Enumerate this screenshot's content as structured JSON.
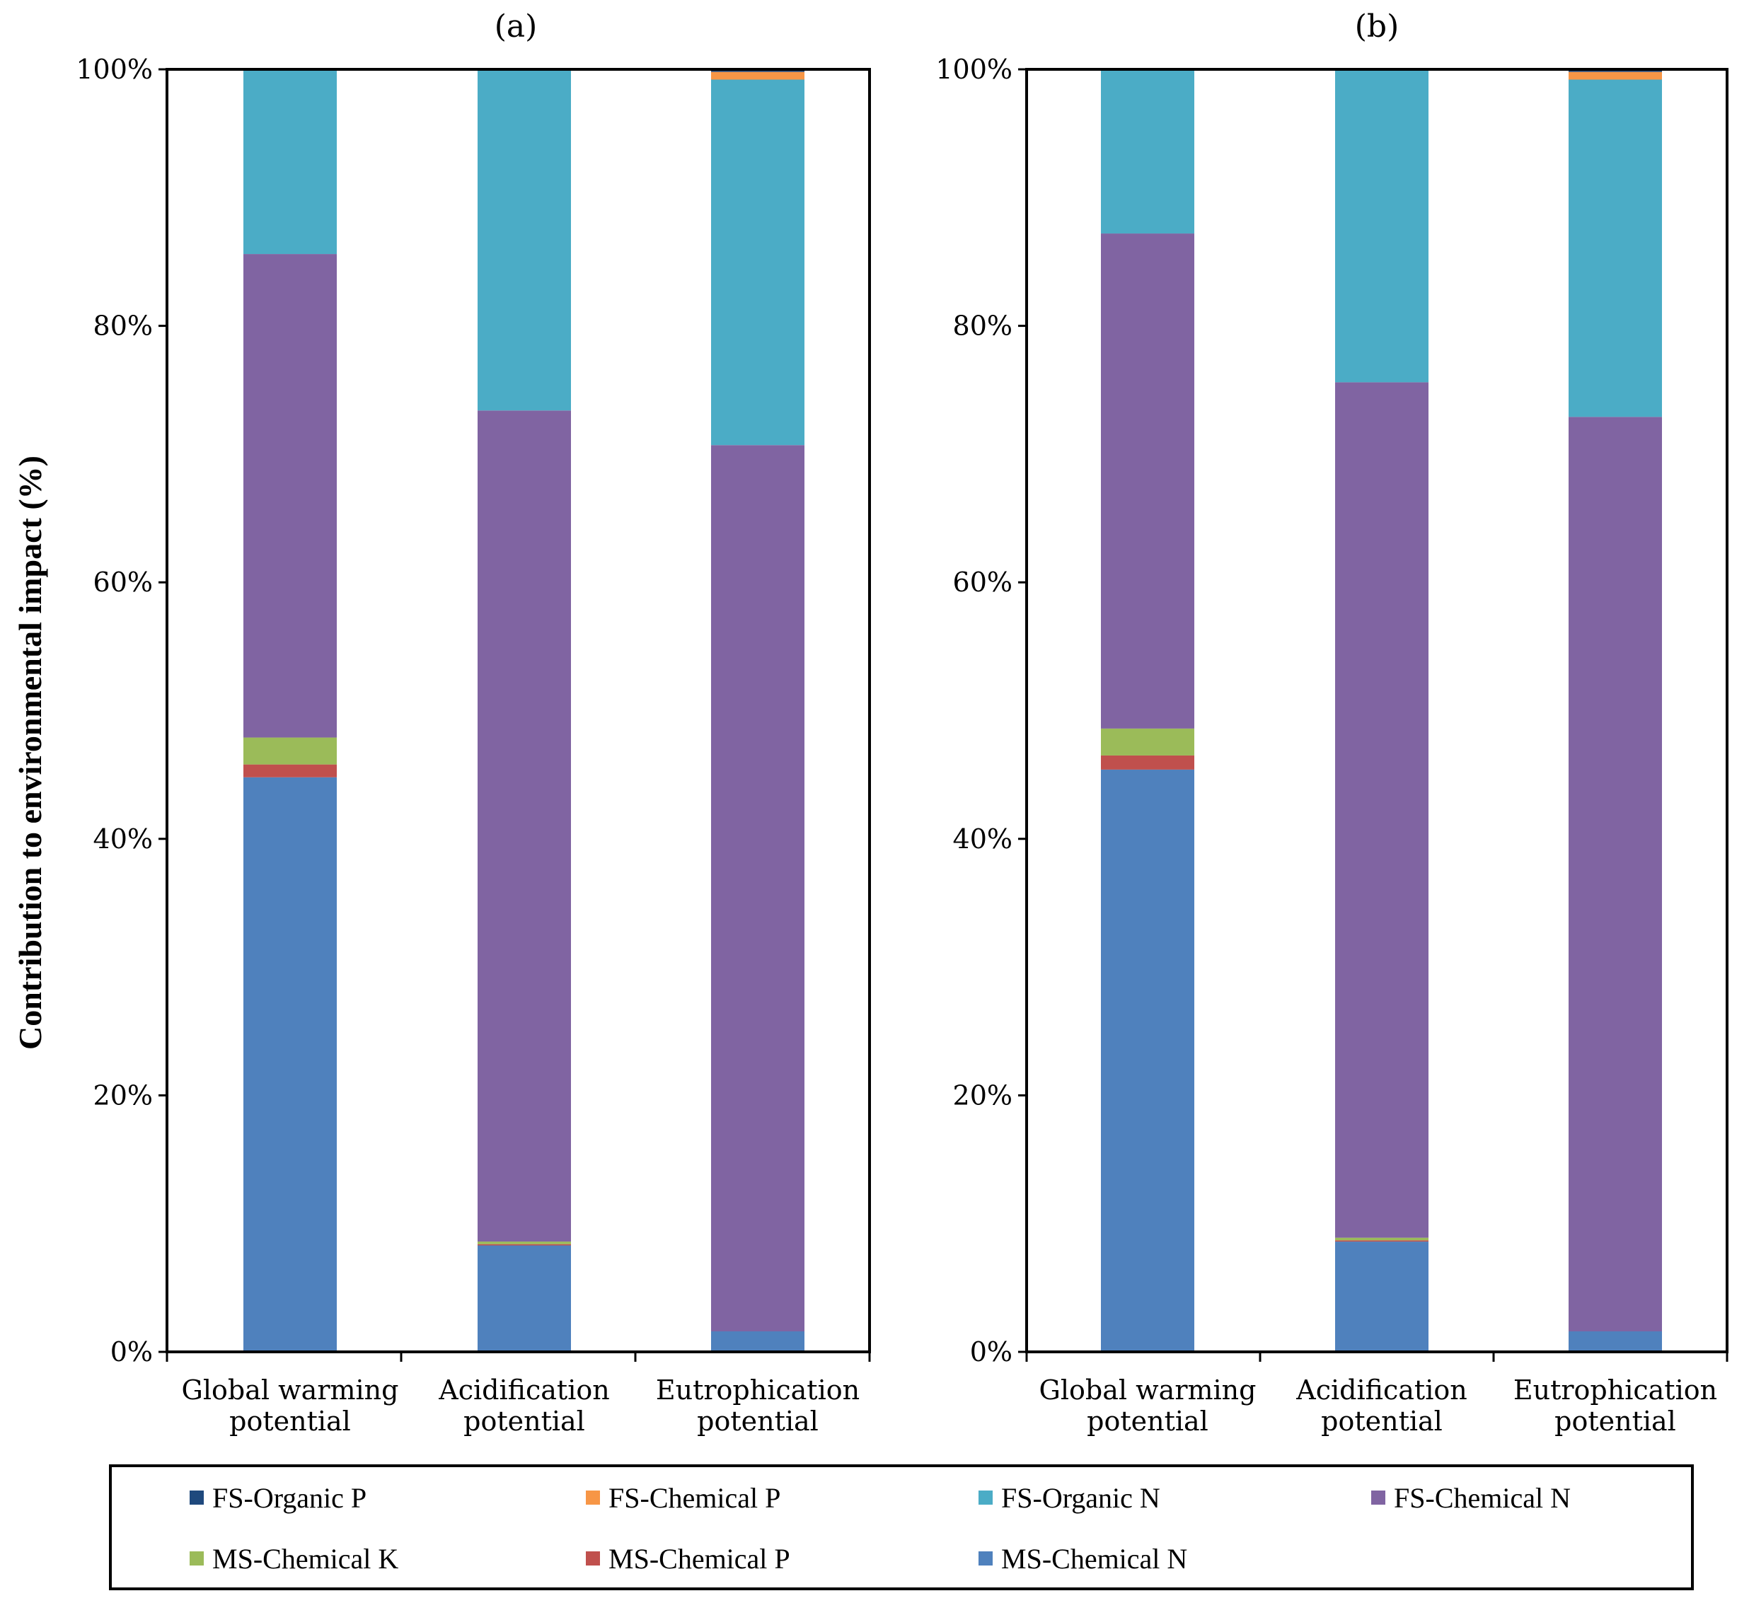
{
  "chart_data": [
    {
      "type": "bar",
      "stacked": true,
      "percent": true,
      "title": "(a)",
      "ylabel": "Contribution to environmental impact (%)",
      "ylim": [
        0,
        100
      ],
      "yticks": [
        "0%",
        "20%",
        "40%",
        "60%",
        "80%",
        "100%"
      ],
      "categories": [
        [
          "Global warming",
          "potential"
        ],
        [
          "Acidification",
          "potential"
        ],
        [
          "Eutrophication",
          "potential"
        ]
      ],
      "series": [
        {
          "name": "MS-Chemical N",
          "color": "#4F81BD",
          "values": [
            44.8,
            8.3,
            1.6
          ]
        },
        {
          "name": "MS-Chemical P",
          "color": "#C0504D",
          "values": [
            1.0,
            0.1,
            0.0
          ]
        },
        {
          "name": "MS-Chemical K",
          "color": "#9BBB59",
          "values": [
            2.1,
            0.2,
            0.0
          ]
        },
        {
          "name": "FS-Chemical N",
          "color": "#8064A2",
          "values": [
            37.7,
            64.8,
            69.1
          ]
        },
        {
          "name": "FS-Organic N",
          "color": "#4BACC6",
          "values": [
            14.4,
            26.6,
            28.5
          ]
        },
        {
          "name": "FS-Chemical P",
          "color": "#F79646",
          "values": [
            0.0,
            0.0,
            0.6
          ]
        },
        {
          "name": "FS-Organic P",
          "color": "#1F497D",
          "values": [
            0.0,
            0.0,
            0.2
          ]
        }
      ]
    },
    {
      "type": "bar",
      "stacked": true,
      "percent": true,
      "title": "(b)",
      "ylabel": "",
      "ylim": [
        0,
        100
      ],
      "yticks": [
        "0%",
        "20%",
        "40%",
        "60%",
        "80%",
        "100%"
      ],
      "categories": [
        [
          "Global warming",
          "potential"
        ],
        [
          "Acidification",
          "potential"
        ],
        [
          "Eutrophication",
          "potential"
        ]
      ],
      "series": [
        {
          "name": "MS-Chemical N",
          "color": "#4F81BD",
          "values": [
            45.4,
            8.6,
            1.6
          ]
        },
        {
          "name": "MS-Chemical P",
          "color": "#C0504D",
          "values": [
            1.1,
            0.1,
            0.0
          ]
        },
        {
          "name": "MS-Chemical K",
          "color": "#9BBB59",
          "values": [
            2.1,
            0.2,
            0.0
          ]
        },
        {
          "name": "FS-Chemical N",
          "color": "#8064A2",
          "values": [
            38.6,
            66.7,
            71.3
          ]
        },
        {
          "name": "FS-Organic N",
          "color": "#4BACC6",
          "values": [
            12.8,
            24.4,
            26.3
          ]
        },
        {
          "name": "FS-Chemical P",
          "color": "#F79646",
          "values": [
            0.0,
            0.0,
            0.6
          ]
        },
        {
          "name": "FS-Organic P",
          "color": "#1F497D",
          "values": [
            0.0,
            0.0,
            0.2
          ]
        }
      ]
    }
  ],
  "legend": {
    "position": "bottom",
    "items": [
      {
        "name": "FS-Organic P",
        "color": "#1F497D"
      },
      {
        "name": "FS-Chemical P",
        "color": "#F79646"
      },
      {
        "name": "FS-Organic N",
        "color": "#4BACC6"
      },
      {
        "name": "FS-Chemical N",
        "color": "#8064A2"
      },
      {
        "name": "MS-Chemical K",
        "color": "#9BBB59"
      },
      {
        "name": "MS-Chemical P",
        "color": "#C0504D"
      },
      {
        "name": "MS-Chemical N",
        "color": "#4F81BD"
      }
    ]
  }
}
